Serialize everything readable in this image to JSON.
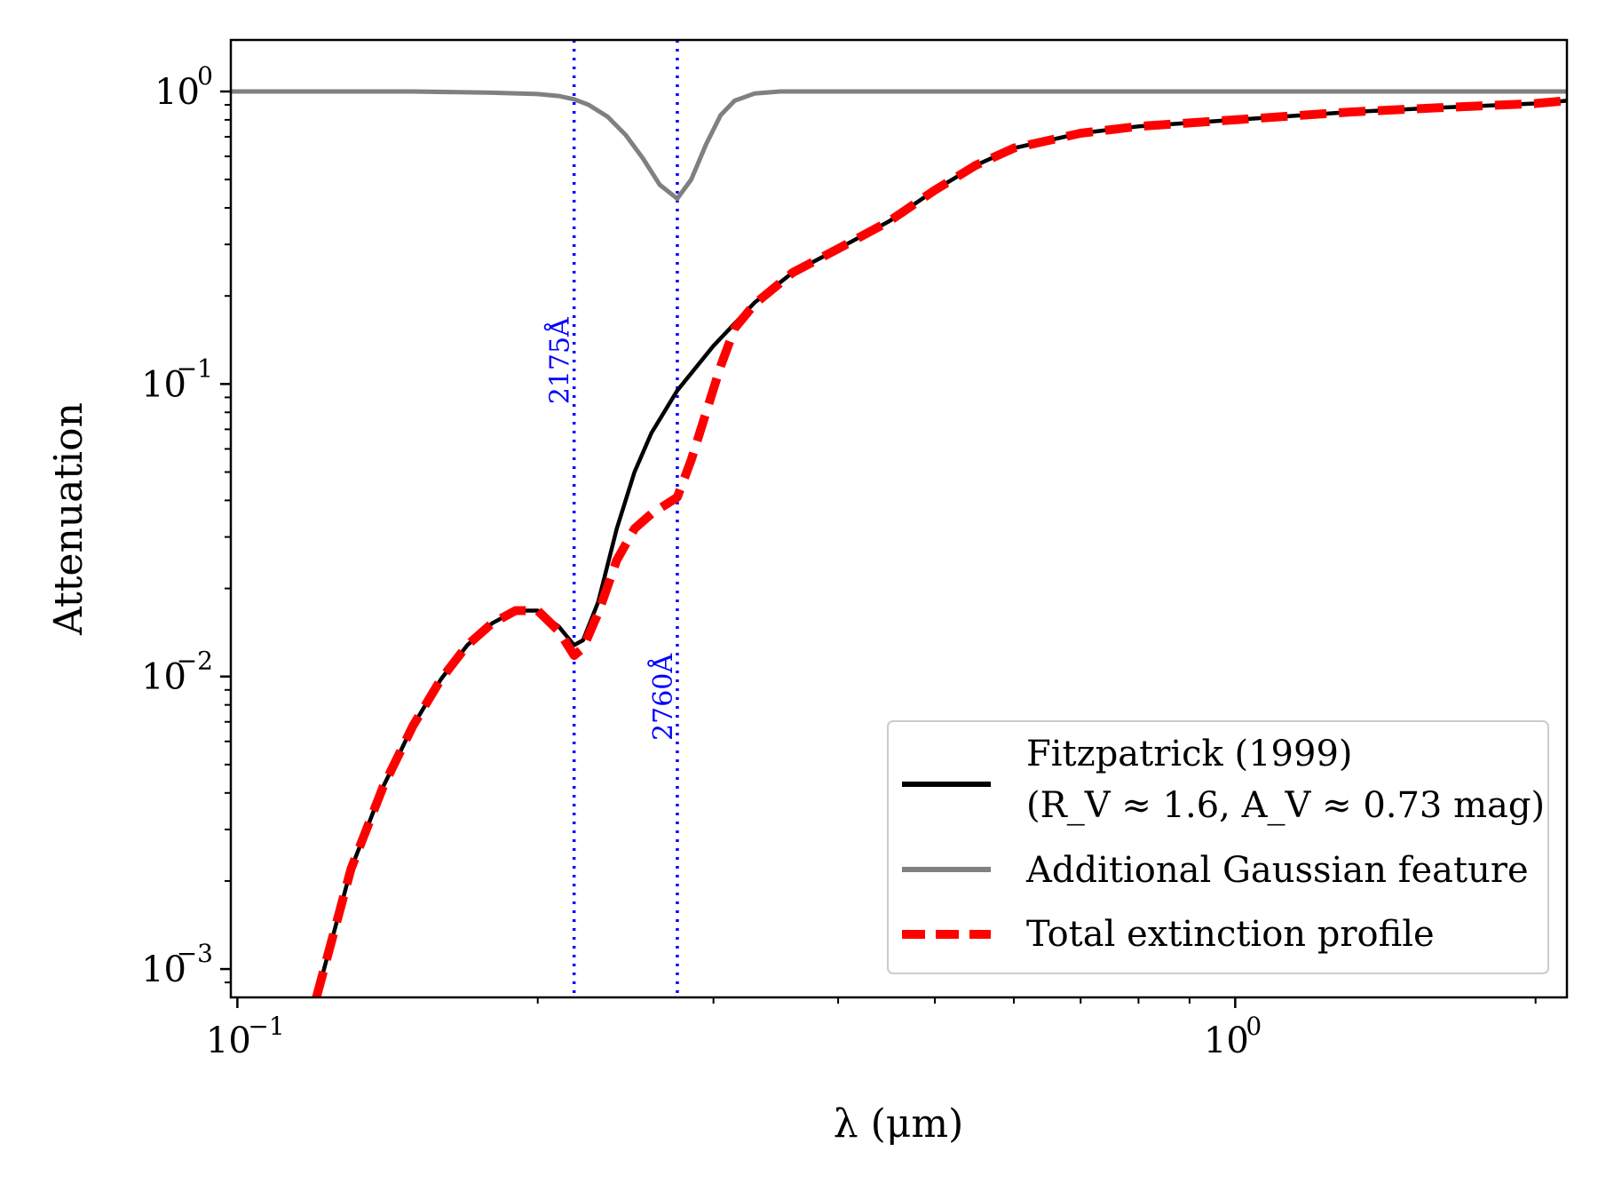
{
  "chart_data": {
    "type": "line",
    "title": "",
    "xlabel": "λ (μm)",
    "ylabel": "Attenuation",
    "xscale": "log",
    "yscale": "log",
    "xlim": [
      0.0985,
      2.15
    ],
    "ylim": [
      0.0008,
      1.5
    ],
    "grid": false,
    "legend_position": "lower-right",
    "x_major_ticks": [
      {
        "value": 0.1,
        "label": "10",
        "exp": "−1"
      },
      {
        "value": 1.0,
        "label": "10",
        "exp": "0"
      }
    ],
    "y_major_ticks": [
      {
        "value": 1.0,
        "label": "10",
        "exp": "0"
      },
      {
        "value": 0.1,
        "label": "10",
        "exp": "−1"
      },
      {
        "value": 0.01,
        "label": "10",
        "exp": "−2"
      },
      {
        "value": 0.001,
        "label": "10",
        "exp": "−3"
      }
    ],
    "x_minor_ticks": [
      0.2,
      0.3,
      0.4,
      0.5,
      0.6,
      0.7,
      0.8,
      0.9,
      2.0
    ],
    "y_minor_ticks": [
      0.0009,
      0.002,
      0.003,
      0.004,
      0.005,
      0.006,
      0.007,
      0.008,
      0.009,
      0.02,
      0.03,
      0.04,
      0.05,
      0.06,
      0.07,
      0.08,
      0.09,
      0.2,
      0.3,
      0.4,
      0.5,
      0.6,
      0.7,
      0.8,
      0.9
    ],
    "vertical_lines": [
      {
        "x": 0.2175,
        "label": "2175Å",
        "color": "#0000ff",
        "style": "dotted",
        "label_y": 0.12
      },
      {
        "x": 0.276,
        "label": "2760Å",
        "color": "#0000ff",
        "style": "dotted",
        "label_y": 0.0085
      }
    ],
    "series": [
      {
        "name": "Fitzpatrick (1999)",
        "name_line2": "(R_V ≈ 1.6, A_V ≈ 0.73 mag)",
        "color": "#000000",
        "style": "solid",
        "x": [
          0.12,
          0.13,
          0.14,
          0.15,
          0.16,
          0.17,
          0.18,
          0.19,
          0.2,
          0.21,
          0.2175,
          0.222,
          0.23,
          0.24,
          0.25,
          0.26,
          0.276,
          0.3,
          0.33,
          0.36,
          0.4,
          0.45,
          0.5,
          0.55,
          0.6,
          0.7,
          0.8,
          1.0,
          1.3,
          1.6,
          2.0,
          2.15
        ],
        "y": [
          0.0008,
          0.0022,
          0.0042,
          0.0068,
          0.0098,
          0.0128,
          0.0152,
          0.0168,
          0.0168,
          0.0148,
          0.0128,
          0.0133,
          0.018,
          0.032,
          0.05,
          0.068,
          0.095,
          0.135,
          0.19,
          0.24,
          0.29,
          0.36,
          0.46,
          0.56,
          0.64,
          0.72,
          0.76,
          0.8,
          0.85,
          0.88,
          0.91,
          0.93
        ]
      },
      {
        "name": "Additional Gaussian feature",
        "color": "#808080",
        "style": "solid",
        "x": [
          0.0985,
          0.12,
          0.15,
          0.18,
          0.2,
          0.21,
          0.2175,
          0.225,
          0.235,
          0.245,
          0.255,
          0.265,
          0.276,
          0.285,
          0.295,
          0.305,
          0.315,
          0.33,
          0.35,
          0.4,
          0.6,
          1.0,
          2.15
        ],
        "y": [
          1.0,
          1.0,
          1.0,
          0.99,
          0.98,
          0.965,
          0.94,
          0.9,
          0.82,
          0.71,
          0.59,
          0.48,
          0.43,
          0.5,
          0.66,
          0.83,
          0.93,
          0.985,
          1.0,
          1.0,
          1.0,
          1.0,
          1.0
        ]
      },
      {
        "name": "Total extinction profile",
        "color": "#ff0000",
        "style": "dashed",
        "x": [
          0.12,
          0.13,
          0.14,
          0.15,
          0.16,
          0.17,
          0.18,
          0.19,
          0.2,
          0.21,
          0.2175,
          0.222,
          0.23,
          0.24,
          0.25,
          0.26,
          0.276,
          0.285,
          0.295,
          0.305,
          0.315,
          0.33,
          0.36,
          0.4,
          0.45,
          0.5,
          0.55,
          0.6,
          0.7,
          0.8,
          1.0,
          1.3,
          1.6,
          2.0,
          2.15
        ],
        "y": [
          0.0008,
          0.0022,
          0.0042,
          0.0068,
          0.0098,
          0.0128,
          0.0152,
          0.0168,
          0.0168,
          0.0143,
          0.0118,
          0.0125,
          0.0165,
          0.025,
          0.032,
          0.036,
          0.041,
          0.055,
          0.08,
          0.115,
          0.155,
          0.188,
          0.24,
          0.29,
          0.36,
          0.46,
          0.56,
          0.64,
          0.72,
          0.76,
          0.8,
          0.85,
          0.88,
          0.91,
          0.93
        ]
      }
    ]
  }
}
